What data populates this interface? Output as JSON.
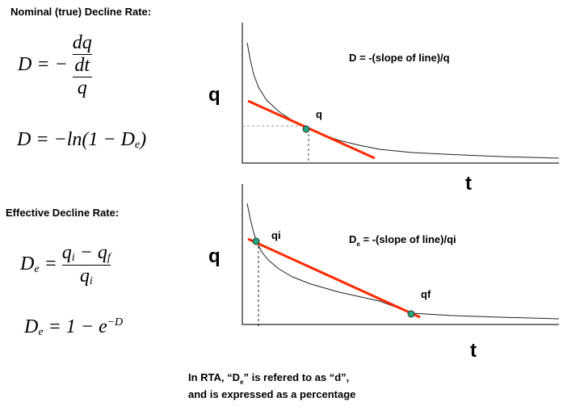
{
  "left": {
    "nominal_heading": "Nominal (true) Decline Rate:",
    "nominal_eq1": {
      "lhs": "D = −",
      "num_num": "dq",
      "num_den": "dt",
      "den": "q"
    },
    "nominal_eq2": {
      "text": "D = −ln(1 − D",
      "sub": "e",
      "close": ")"
    },
    "effective_heading": "Effective Decline Rate:",
    "effective_eq1": {
      "lhs": "D",
      "lhs_sub": "e",
      "eq": " = ",
      "num": "q",
      "num_sub1": "i",
      "minus": " − q",
      "num_sub2": "f",
      "den": "q",
      "den_sub": "i"
    },
    "effective_eq2": {
      "lhs": "D",
      "lhs_sub": "e",
      "rhs": " = 1 − e",
      "sup": "−D"
    }
  },
  "top_chart": {
    "y_label": "q",
    "x_label": "t",
    "formula": "D = -(slope of line)/q",
    "point_label": "q"
  },
  "bottom_chart": {
    "y_label": "q",
    "x_label": "t",
    "formula_prefix": "D",
    "formula_sub": "e",
    "formula_rest": " = -(slope of line)/qi",
    "point1_label": "qi",
    "point2_label": "qf"
  },
  "footer": {
    "line1_a": "In RTA, “D",
    "line1_sub": "e",
    "line1_b": "” is refered to as “d”,",
    "line2": "and is expressed as a percentage"
  },
  "colors": {
    "tangent": "#ff2a00",
    "point": "#22a67a",
    "curve": "#222222"
  }
}
